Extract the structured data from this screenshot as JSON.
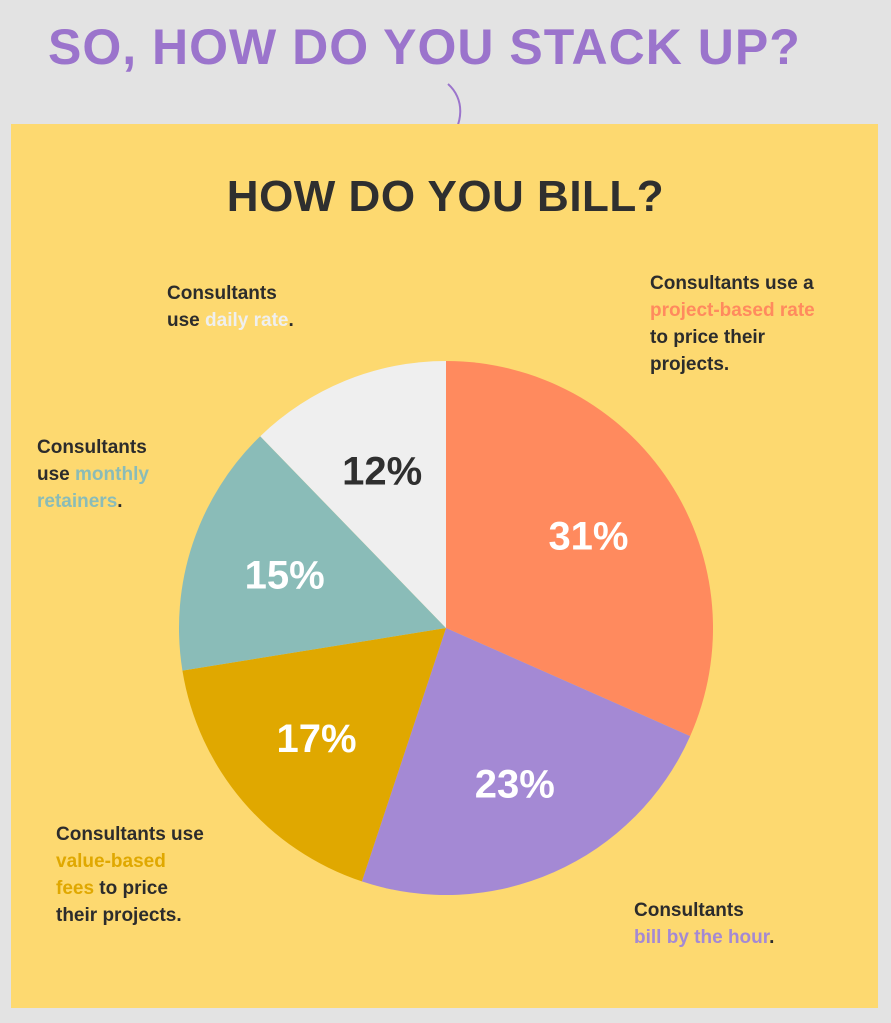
{
  "headline": "SO, HOW DO YOU STACK UP?",
  "chart_data": {
    "type": "pie",
    "title": "HOW DO YOU BILL?",
    "slices": [
      {
        "label": "project-based rate",
        "value": 31,
        "display": "31%",
        "color": "#ff8a5e",
        "text_color": "#ffffff"
      },
      {
        "label": "bill by the hour",
        "value": 23,
        "display": "23%",
        "color": "#a489d4",
        "text_color": "#ffffff"
      },
      {
        "label": "value-based fees",
        "value": 17,
        "display": "17%",
        "color": "#e0a800",
        "text_color": "#ffffff"
      },
      {
        "label": "monthly retainers",
        "value": 15,
        "display": "15%",
        "color": "#8abcb8",
        "text_color": "#ffffff"
      },
      {
        "label": "daily rate",
        "value": 12,
        "display": "12%",
        "color": "#efefef",
        "text_color": "#2f2f2f"
      }
    ]
  },
  "annotations": {
    "project": {
      "line1": "Consultants use a",
      "highlight": "project-based rate",
      "line3": "to price their",
      "line4": "projects."
    },
    "hour": {
      "line1": "Consultants",
      "highlight": "bill by the hour",
      "suffix": "."
    },
    "value": {
      "line1": "Consultants use",
      "highlight1": "value-based",
      "highlight2": "fees",
      "rest": " to price",
      "line4": "their projects."
    },
    "monthly": {
      "line1": "Consultants",
      "prefix": "use ",
      "highlight1": "monthly",
      "highlight2": "retainers",
      "suffix": "."
    },
    "daily": {
      "line1": "Consultants",
      "prefix": "use ",
      "highlight": "daily rate",
      "suffix": "."
    }
  }
}
